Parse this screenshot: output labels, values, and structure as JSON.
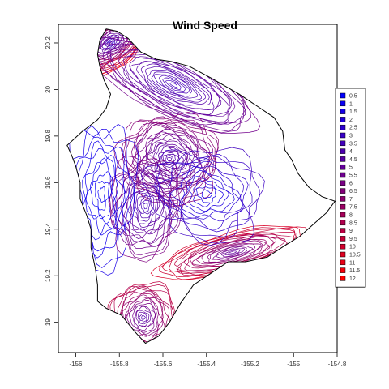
{
  "chart_data": {
    "type": "contour",
    "title": "Wind Speed",
    "xlim": [
      -156.08,
      -154.8
    ],
    "ylim": [
      18.87,
      20.28
    ],
    "x_ticks": [
      -156,
      -155.8,
      -155.6,
      -155.4,
      -155.2,
      -155,
      -154.8
    ],
    "x_tick_labels": [
      "-156",
      "-155.8",
      "-155.6",
      "-155.4",
      "-155.2",
      "-155",
      "-154.8"
    ],
    "y_ticks": [
      19,
      19.2,
      19.4,
      19.6,
      19.8,
      20,
      20.2
    ],
    "y_tick_labels": [
      "19",
      "19.2",
      "19.4",
      "19.6",
      "19.8",
      "20",
      "20.2"
    ],
    "levels": [
      0.5,
      1,
      1.5,
      2,
      2.5,
      3,
      3.5,
      4,
      4.5,
      5,
      5.5,
      6,
      6.5,
      7,
      7.5,
      8,
      8.5,
      9,
      9.5,
      10,
      10.5,
      11,
      11.5,
      12
    ],
    "legend_labels": [
      "0.5",
      "1",
      "1.5",
      "2",
      "2.5",
      "3",
      "3.5",
      "4",
      "4.5",
      "5",
      "5.5",
      "6",
      "6.5",
      "7",
      "7.5",
      "8",
      "8.5",
      "9",
      "9.5",
      "10",
      "10.5",
      "11",
      "11.5",
      "12"
    ],
    "color_low": "#0000ff",
    "color_high": "#ff0000",
    "legend_position": "right",
    "island_outline": [
      [
        -155.86,
        20.26
      ],
      [
        -155.81,
        20.25
      ],
      [
        -155.76,
        20.22
      ],
      [
        -155.7,
        20.16
      ],
      [
        -155.63,
        20.13
      ],
      [
        -155.56,
        20.12
      ],
      [
        -155.48,
        20.1
      ],
      [
        -155.38,
        20.05
      ],
      [
        -155.25,
        19.98
      ],
      [
        -155.17,
        19.93
      ],
      [
        -155.09,
        19.88
      ],
      [
        -155.05,
        19.82
      ],
      [
        -155.04,
        19.74
      ],
      [
        -155.01,
        19.7
      ],
      [
        -154.98,
        19.64
      ],
      [
        -154.93,
        19.58
      ],
      [
        -154.87,
        19.54
      ],
      [
        -154.81,
        19.52
      ],
      [
        -154.85,
        19.47
      ],
      [
        -154.91,
        19.42
      ],
      [
        -154.97,
        19.37
      ],
      [
        -155.04,
        19.33
      ],
      [
        -155.12,
        19.28
      ],
      [
        -155.22,
        19.26
      ],
      [
        -155.3,
        19.26
      ],
      [
        -155.38,
        19.21
      ],
      [
        -155.46,
        19.16
      ],
      [
        -155.52,
        19.08
      ],
      [
        -155.57,
        19.0
      ],
      [
        -155.62,
        18.94
      ],
      [
        -155.68,
        18.91
      ],
      [
        -155.73,
        18.96
      ],
      [
        -155.79,
        19.03
      ],
      [
        -155.86,
        19.06
      ],
      [
        -155.9,
        19.09
      ],
      [
        -155.9,
        19.16
      ],
      [
        -155.91,
        19.23
      ],
      [
        -155.93,
        19.32
      ],
      [
        -155.93,
        19.4
      ],
      [
        -155.95,
        19.46
      ],
      [
        -155.98,
        19.53
      ],
      [
        -155.98,
        19.6
      ],
      [
        -156.0,
        19.67
      ],
      [
        -156.02,
        19.72
      ],
      [
        -156.04,
        19.76
      ],
      [
        -155.97,
        19.82
      ],
      [
        -155.9,
        19.87
      ],
      [
        -155.86,
        19.92
      ],
      [
        -155.84,
        19.98
      ],
      [
        -155.87,
        20.04
      ],
      [
        -155.89,
        20.1
      ],
      [
        -155.9,
        20.15
      ],
      [
        -155.89,
        20.21
      ]
    ]
  }
}
